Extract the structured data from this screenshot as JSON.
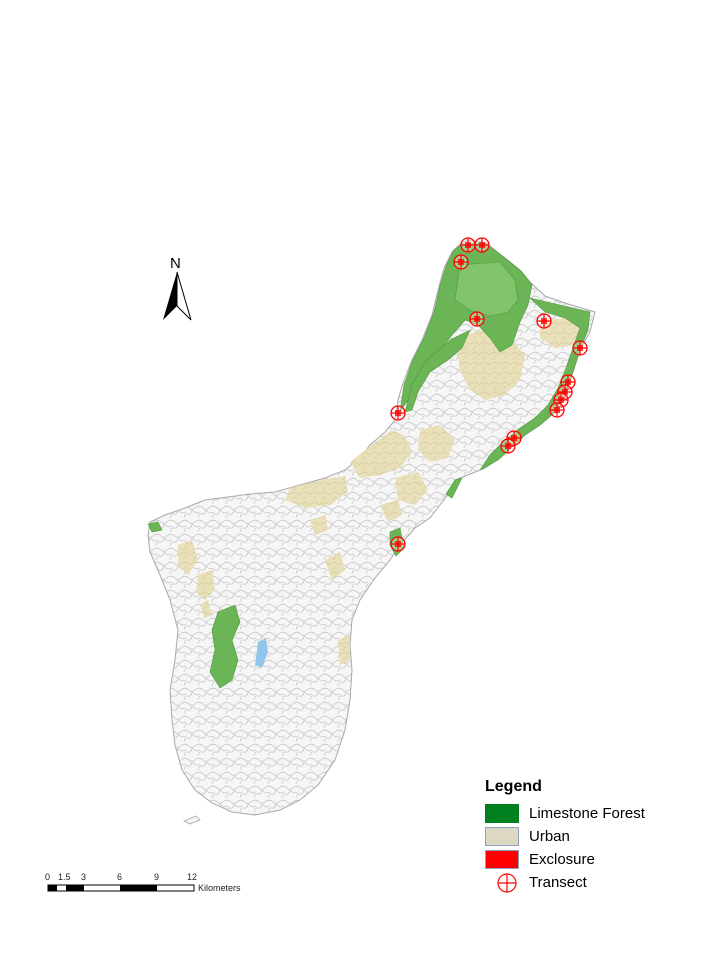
{
  "north_arrow": {
    "label": "N"
  },
  "legend": {
    "title": "Legend",
    "items": [
      {
        "label": "Limestone Forest",
        "color": "#00801e"
      },
      {
        "label": "Urban",
        "color": "#ddd8c4"
      },
      {
        "label": "Exclosure",
        "color": "#ff0000"
      },
      {
        "label": "Transect",
        "symbol": "circle-cross",
        "color": "#ff0000"
      }
    ]
  },
  "scale_bar": {
    "ticks": [
      "0",
      "1.5",
      "3",
      "6",
      "9",
      "12"
    ],
    "unit": "Kilometers"
  },
  "colors": {
    "land": "#f4f4f4",
    "land_outline": "#a9a9a9",
    "roads": "#c4c4c4",
    "forest": "#6cb556",
    "urban": "#e6dcb4",
    "water": "#8fc6ea",
    "transect": "#ff0000"
  }
}
